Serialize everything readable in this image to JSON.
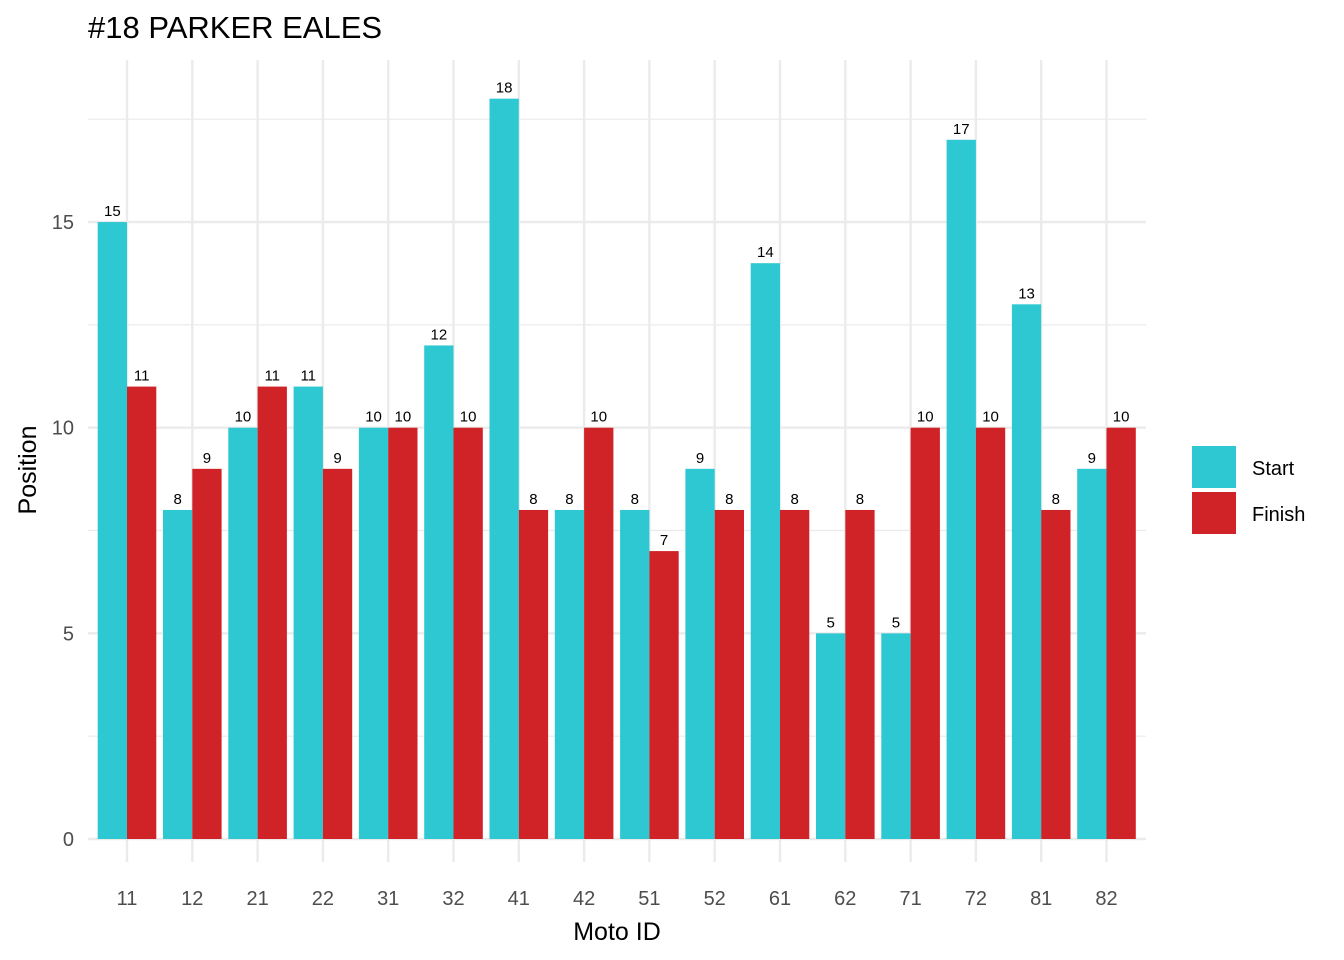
{
  "chart_data": {
    "type": "bar",
    "title": "#18 PARKER EALES",
    "xlabel": "Moto ID",
    "ylabel": "Position",
    "categories": [
      "11",
      "12",
      "21",
      "22",
      "31",
      "32",
      "41",
      "42",
      "51",
      "52",
      "61",
      "62",
      "71",
      "72",
      "81",
      "82"
    ],
    "series": [
      {
        "name": "Start",
        "color": "#2EC8D2",
        "values": [
          15,
          8,
          10,
          11,
          10,
          12,
          18,
          8,
          8,
          9,
          14,
          5,
          5,
          17,
          13,
          9
        ]
      },
      {
        "name": "Finish",
        "color": "#D02328",
        "values": [
          11,
          9,
          11,
          9,
          10,
          10,
          8,
          10,
          7,
          8,
          8,
          8,
          10,
          10,
          8,
          10
        ]
      }
    ],
    "yticks": [
      0,
      5,
      10,
      15
    ],
    "ylim": [
      0,
      18.9
    ],
    "grid": true,
    "legend_position": "right"
  }
}
